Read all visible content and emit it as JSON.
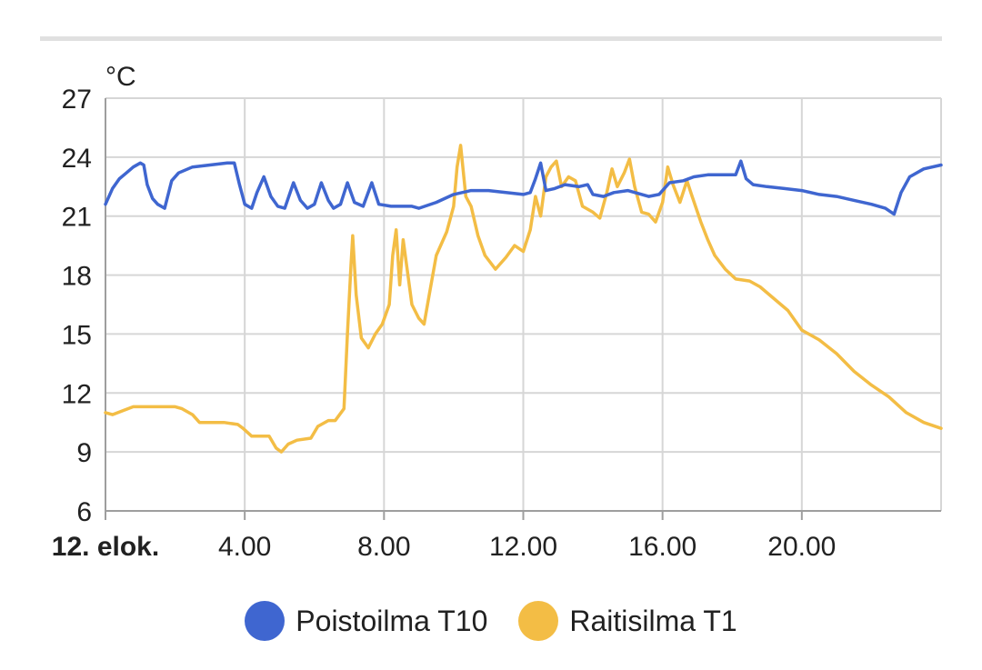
{
  "chart_data": {
    "type": "line",
    "unit_label": "°C",
    "ylim": [
      6,
      27
    ],
    "y_ticks": [
      6,
      9,
      12,
      15,
      18,
      21,
      24,
      27
    ],
    "x_range_hours": [
      0,
      24
    ],
    "x_ticks": [
      {
        "hour": 0,
        "label": "12. elok.",
        "bold": true
      },
      {
        "hour": 4,
        "label": "4.00",
        "bold": false
      },
      {
        "hour": 8,
        "label": "8.00",
        "bold": false
      },
      {
        "hour": 12,
        "label": "12.00",
        "bold": false
      },
      {
        "hour": 16,
        "label": "16.00",
        "bold": false
      },
      {
        "hour": 20,
        "label": "20.00",
        "bold": false
      }
    ],
    "grid": true,
    "legend_position": "bottom",
    "series": [
      {
        "name": "Poistoilma T10",
        "color": "#3f66d0",
        "points": [
          [
            0.0,
            21.6
          ],
          [
            0.2,
            22.4
          ],
          [
            0.4,
            22.9
          ],
          [
            0.6,
            23.2
          ],
          [
            0.8,
            23.5
          ],
          [
            1.0,
            23.7
          ],
          [
            1.1,
            23.6
          ],
          [
            1.2,
            22.6
          ],
          [
            1.35,
            21.9
          ],
          [
            1.5,
            21.6
          ],
          [
            1.7,
            21.4
          ],
          [
            1.9,
            22.8
          ],
          [
            2.1,
            23.2
          ],
          [
            2.5,
            23.5
          ],
          [
            3.0,
            23.6
          ],
          [
            3.5,
            23.7
          ],
          [
            3.7,
            23.7
          ],
          [
            3.85,
            22.6
          ],
          [
            4.0,
            21.6
          ],
          [
            4.2,
            21.4
          ],
          [
            4.35,
            22.2
          ],
          [
            4.55,
            23.0
          ],
          [
            4.75,
            22.0
          ],
          [
            4.95,
            21.5
          ],
          [
            5.15,
            21.4
          ],
          [
            5.4,
            22.7
          ],
          [
            5.6,
            21.8
          ],
          [
            5.8,
            21.4
          ],
          [
            6.0,
            21.6
          ],
          [
            6.2,
            22.7
          ],
          [
            6.4,
            21.8
          ],
          [
            6.55,
            21.4
          ],
          [
            6.75,
            21.6
          ],
          [
            6.95,
            22.7
          ],
          [
            7.15,
            21.7
          ],
          [
            7.4,
            21.5
          ],
          [
            7.65,
            22.7
          ],
          [
            7.85,
            21.6
          ],
          [
            8.2,
            21.5
          ],
          [
            8.8,
            21.5
          ],
          [
            9.0,
            21.4
          ],
          [
            9.5,
            21.7
          ],
          [
            10.0,
            22.1
          ],
          [
            10.5,
            22.3
          ],
          [
            11.0,
            22.3
          ],
          [
            11.5,
            22.2
          ],
          [
            12.0,
            22.1
          ],
          [
            12.2,
            22.2
          ],
          [
            12.35,
            22.9
          ],
          [
            12.5,
            23.7
          ],
          [
            12.65,
            22.3
          ],
          [
            12.9,
            22.4
          ],
          [
            13.2,
            22.6
          ],
          [
            13.6,
            22.5
          ],
          [
            13.85,
            22.6
          ],
          [
            14.0,
            22.1
          ],
          [
            14.3,
            22.0
          ],
          [
            14.6,
            22.2
          ],
          [
            15.0,
            22.3
          ],
          [
            15.6,
            22.0
          ],
          [
            15.9,
            22.1
          ],
          [
            16.2,
            22.7
          ],
          [
            16.6,
            22.8
          ],
          [
            16.9,
            23.0
          ],
          [
            17.3,
            23.1
          ],
          [
            17.8,
            23.1
          ],
          [
            18.1,
            23.1
          ],
          [
            18.25,
            23.8
          ],
          [
            18.4,
            22.9
          ],
          [
            18.6,
            22.6
          ],
          [
            19.0,
            22.5
          ],
          [
            19.5,
            22.4
          ],
          [
            20.0,
            22.3
          ],
          [
            20.5,
            22.1
          ],
          [
            21.0,
            22.0
          ],
          [
            21.5,
            21.8
          ],
          [
            22.0,
            21.6
          ],
          [
            22.4,
            21.4
          ],
          [
            22.65,
            21.1
          ],
          [
            22.85,
            22.2
          ],
          [
            23.1,
            23.0
          ],
          [
            23.5,
            23.4
          ],
          [
            24.0,
            23.6
          ]
        ]
      },
      {
        "name": "Raitisilma T1",
        "color": "#f3bd45",
        "points": [
          [
            0.0,
            11.0
          ],
          [
            0.2,
            10.9
          ],
          [
            0.5,
            11.1
          ],
          [
            0.8,
            11.3
          ],
          [
            1.2,
            11.3
          ],
          [
            1.6,
            11.3
          ],
          [
            2.0,
            11.3
          ],
          [
            2.2,
            11.2
          ],
          [
            2.5,
            10.9
          ],
          [
            2.7,
            10.5
          ],
          [
            3.0,
            10.5
          ],
          [
            3.4,
            10.5
          ],
          [
            3.8,
            10.4
          ],
          [
            3.95,
            10.2
          ],
          [
            4.2,
            9.8
          ],
          [
            4.5,
            9.8
          ],
          [
            4.7,
            9.8
          ],
          [
            4.9,
            9.2
          ],
          [
            5.05,
            9.0
          ],
          [
            5.25,
            9.4
          ],
          [
            5.5,
            9.6
          ],
          [
            5.9,
            9.7
          ],
          [
            6.1,
            10.3
          ],
          [
            6.4,
            10.6
          ],
          [
            6.6,
            10.6
          ],
          [
            6.85,
            11.2
          ],
          [
            6.95,
            15.0
          ],
          [
            7.05,
            18.5
          ],
          [
            7.1,
            20.0
          ],
          [
            7.2,
            17.0
          ],
          [
            7.35,
            14.8
          ],
          [
            7.55,
            14.3
          ],
          [
            7.75,
            15.0
          ],
          [
            7.95,
            15.5
          ],
          [
            8.15,
            16.5
          ],
          [
            8.25,
            19.0
          ],
          [
            8.35,
            20.3
          ],
          [
            8.45,
            17.5
          ],
          [
            8.55,
            19.8
          ],
          [
            8.65,
            18.5
          ],
          [
            8.8,
            16.5
          ],
          [
            9.0,
            15.8
          ],
          [
            9.15,
            15.5
          ],
          [
            9.3,
            17.0
          ],
          [
            9.5,
            19.0
          ],
          [
            9.8,
            20.2
          ],
          [
            10.0,
            21.5
          ],
          [
            10.1,
            23.5
          ],
          [
            10.2,
            24.6
          ],
          [
            10.35,
            22.0
          ],
          [
            10.5,
            21.5
          ],
          [
            10.7,
            20.0
          ],
          [
            10.9,
            19.0
          ],
          [
            11.2,
            18.3
          ],
          [
            11.5,
            18.9
          ],
          [
            11.75,
            19.5
          ],
          [
            12.0,
            19.2
          ],
          [
            12.2,
            20.3
          ],
          [
            12.35,
            22.0
          ],
          [
            12.5,
            21.0
          ],
          [
            12.65,
            23.0
          ],
          [
            12.8,
            23.5
          ],
          [
            12.95,
            23.8
          ],
          [
            13.1,
            22.5
          ],
          [
            13.3,
            23.0
          ],
          [
            13.5,
            22.8
          ],
          [
            13.7,
            21.5
          ],
          [
            14.0,
            21.2
          ],
          [
            14.2,
            20.9
          ],
          [
            14.4,
            22.2
          ],
          [
            14.55,
            23.4
          ],
          [
            14.7,
            22.5
          ],
          [
            14.9,
            23.2
          ],
          [
            15.05,
            23.9
          ],
          [
            15.2,
            22.5
          ],
          [
            15.4,
            21.2
          ],
          [
            15.6,
            21.1
          ],
          [
            15.8,
            20.7
          ],
          [
            16.0,
            21.7
          ],
          [
            16.15,
            23.5
          ],
          [
            16.3,
            22.6
          ],
          [
            16.5,
            21.7
          ],
          [
            16.7,
            22.8
          ],
          [
            16.85,
            22.0
          ],
          [
            17.1,
            20.7
          ],
          [
            17.3,
            19.8
          ],
          [
            17.5,
            19.0
          ],
          [
            17.8,
            18.3
          ],
          [
            18.1,
            17.8
          ],
          [
            18.5,
            17.7
          ],
          [
            18.8,
            17.4
          ],
          [
            19.2,
            16.8
          ],
          [
            19.6,
            16.2
          ],
          [
            20.0,
            15.2
          ],
          [
            20.5,
            14.7
          ],
          [
            21.0,
            14.0
          ],
          [
            21.5,
            13.1
          ],
          [
            22.0,
            12.4
          ],
          [
            22.5,
            11.8
          ],
          [
            23.0,
            11.0
          ],
          [
            23.5,
            10.5
          ],
          [
            24.0,
            10.2
          ]
        ]
      }
    ]
  }
}
